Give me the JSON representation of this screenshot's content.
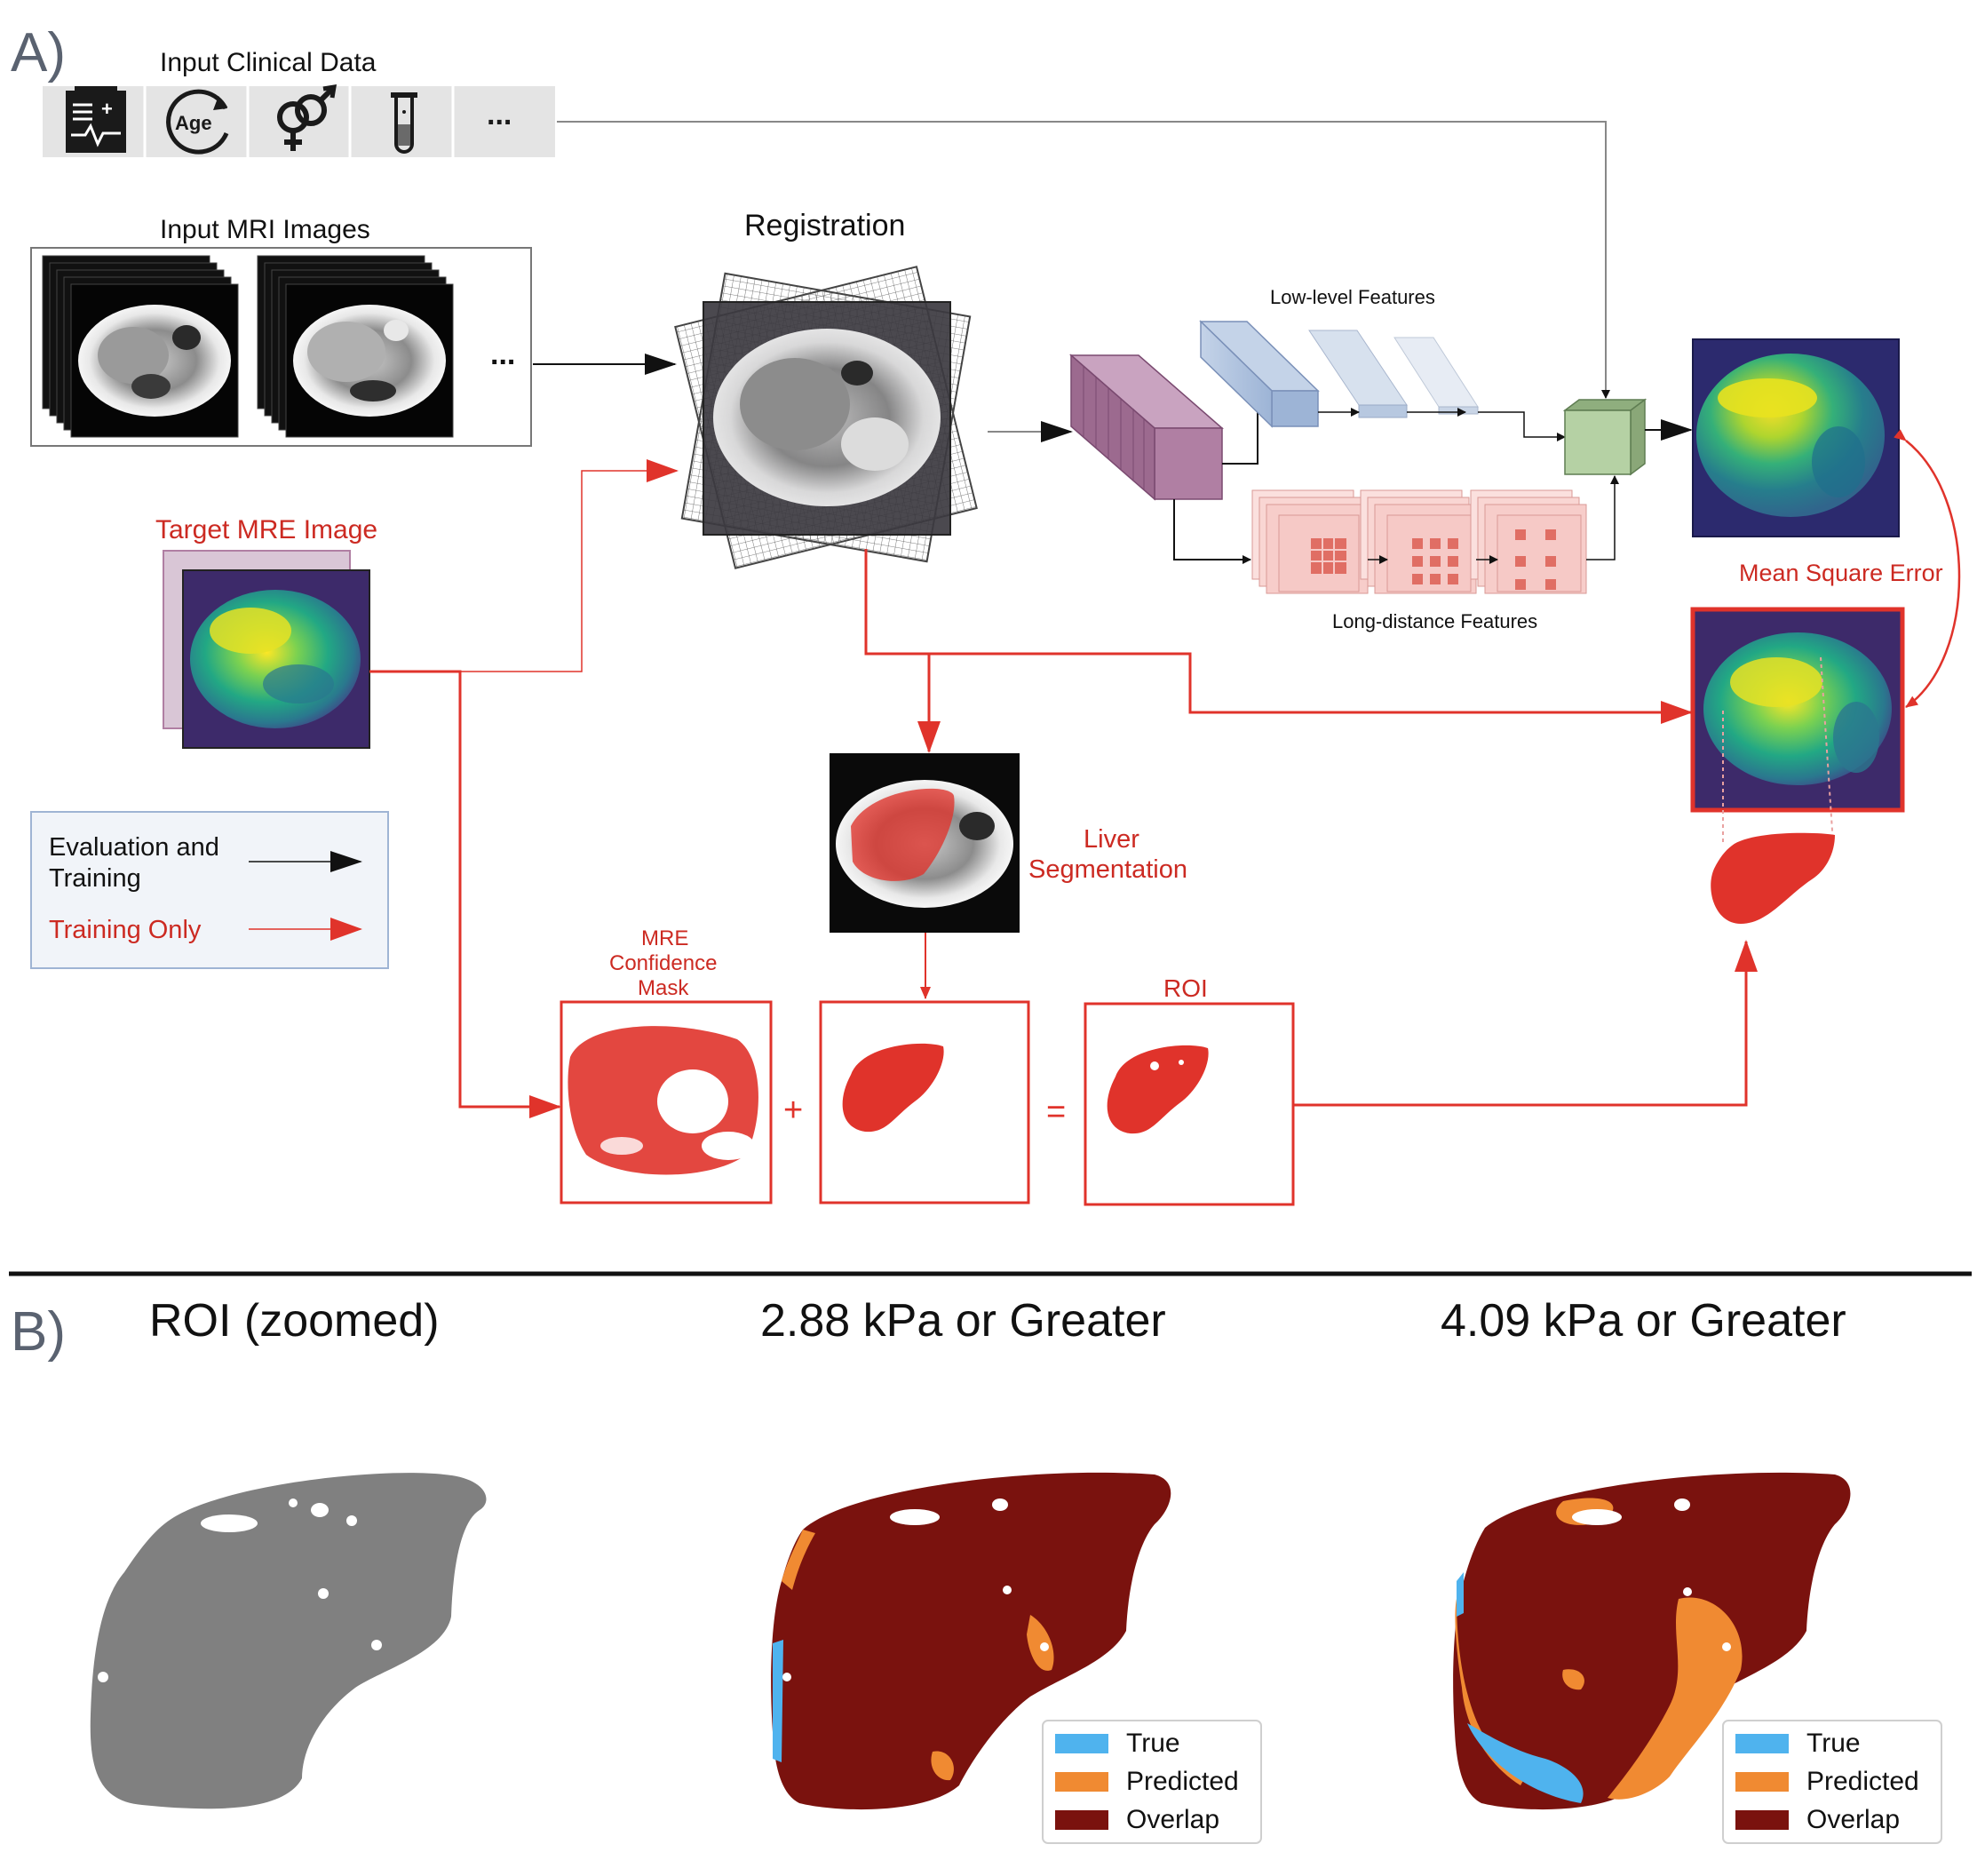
{
  "panel_a": {
    "label": "A)",
    "clinical": {
      "title": "Input Clinical Data",
      "icons": [
        "medical-record-icon",
        "age-cycle-icon",
        "gender-symbol-icon",
        "test-tube-icon"
      ],
      "age_text": "Age",
      "more": "..."
    },
    "mri": {
      "title": "Input MRI Images",
      "more": "..."
    },
    "registration": {
      "title": "Registration"
    },
    "target": {
      "title": "Target MRE Image"
    },
    "features": {
      "low": "Low-level Features",
      "long": "Long-distance Features"
    },
    "mse": "Mean Square Error",
    "segmentation": {
      "line1": "Liver",
      "line2": "Segmentation"
    },
    "confidence": {
      "line1": "MRE",
      "line2": "Confidence",
      "line3": "Mask"
    },
    "roi": "ROI",
    "plus": "+",
    "equals": "=",
    "legend": {
      "eval_line1": "Evaluation and",
      "eval_line2": "Training",
      "train_only": "Training Only"
    },
    "colors": {
      "red": "#e0332b",
      "dark_red_text": "#cc2a22",
      "black": "#111111",
      "grey_line": "#888888",
      "purple_block": "#b07fa3",
      "blue_block": "#a9bedb",
      "pink_block": "#f6c9c6",
      "green_cube": "#a9c79a"
    }
  },
  "panel_b": {
    "label": "B)",
    "titles": [
      "ROI (zoomed)",
      "2.88 kPa or Greater",
      "4.09 kPa or Greater"
    ],
    "legend": [
      {
        "label": "True",
        "color": "#4fb3ee"
      },
      {
        "label": "Predicted",
        "color": "#f08a32"
      },
      {
        "label": "Overlap",
        "color": "#7a120e"
      }
    ],
    "roi_color": "#808080"
  }
}
